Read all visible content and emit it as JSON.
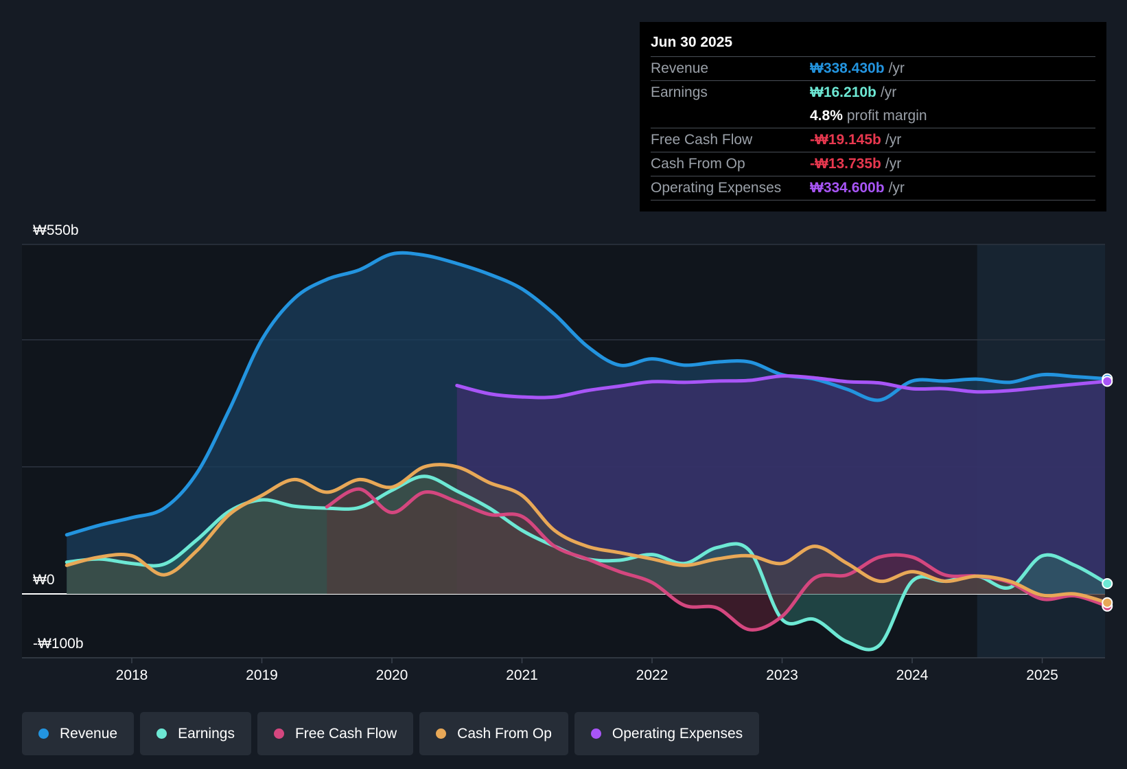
{
  "tooltip": {
    "date": "Jun 30 2025",
    "rows": [
      {
        "label": "Revenue",
        "value": "₩338.430b",
        "unit": "/yr",
        "color": "#2394df"
      },
      {
        "label": "Earnings",
        "value": "₩16.210b",
        "unit": "/yr",
        "color": "#6de8d4"
      },
      {
        "label": "",
        "value": "4.8%",
        "unit": "profit margin",
        "color": "#ffffff"
      },
      {
        "label": "Free Cash Flow",
        "value": "-₩19.145b",
        "unit": "/yr",
        "color": "#e8384f"
      },
      {
        "label": "Cash From Op",
        "value": "-₩13.735b",
        "unit": "/yr",
        "color": "#e8384f"
      },
      {
        "label": "Operating Expenses",
        "value": "₩334.600b",
        "unit": "/yr",
        "color": "#a855f7"
      }
    ]
  },
  "legend": [
    {
      "label": "Revenue",
      "color": "#2394df"
    },
    {
      "label": "Earnings",
      "color": "#6de8d4"
    },
    {
      "label": "Free Cash Flow",
      "color": "#d4477f"
    },
    {
      "label": "Cash From Op",
      "color": "#e8a857"
    },
    {
      "label": "Operating Expenses",
      "color": "#a855f7"
    }
  ],
  "chart_data": {
    "type": "area",
    "title": "",
    "xlabel": "",
    "ylabel": "",
    "x_range": [
      2017.17,
      2025.5
    ],
    "ylim": [
      -100,
      550
    ],
    "y_tick_labels": [
      {
        "value": 550,
        "label": "₩550b"
      },
      {
        "value": 0,
        "label": "₩0"
      },
      {
        "value": -100,
        "label": "-₩100b"
      }
    ],
    "gridlines": [
      550,
      400,
      200
    ],
    "x_ticks": [
      {
        "value": 2018,
        "label": "2018"
      },
      {
        "value": 2019,
        "label": "2019"
      },
      {
        "value": 2020,
        "label": "2020"
      },
      {
        "value": 2021,
        "label": "2021"
      },
      {
        "value": 2022,
        "label": "2022"
      },
      {
        "value": 2023,
        "label": "2023"
      },
      {
        "value": 2024,
        "label": "2024"
      },
      {
        "value": 2025,
        "label": "2025"
      }
    ],
    "forecast_start": 2024.5,
    "series": [
      {
        "name": "Revenue",
        "color": "#2394df",
        "fill": "#1a3d5c",
        "x": [
          2017.5,
          2017.75,
          2018.0,
          2018.25,
          2018.5,
          2018.75,
          2019.0,
          2019.25,
          2019.5,
          2019.75,
          2020.0,
          2020.25,
          2020.5,
          2020.75,
          2021.0,
          2021.25,
          2021.5,
          2021.75,
          2022.0,
          2022.25,
          2022.5,
          2022.75,
          2023.0,
          2023.25,
          2023.5,
          2023.75,
          2024.0,
          2024.25,
          2024.5,
          2024.75,
          2025.0,
          2025.25,
          2025.5
        ],
        "values": [
          93,
          108,
          120,
          135,
          190,
          290,
          400,
          465,
          495,
          510,
          535,
          533,
          520,
          503,
          480,
          440,
          390,
          360,
          370,
          360,
          365,
          365,
          345,
          338,
          322,
          305,
          335,
          335,
          338,
          333,
          345,
          342,
          338.43
        ]
      },
      {
        "name": "Operating Expenses",
        "color": "#a855f7",
        "fill": "#3b2f6a",
        "x": [
          2020.5,
          2020.75,
          2021.0,
          2021.25,
          2021.5,
          2021.75,
          2022.0,
          2022.25,
          2022.5,
          2022.75,
          2023.0,
          2023.25,
          2023.5,
          2023.75,
          2024.0,
          2024.25,
          2024.5,
          2024.75,
          2025.0,
          2025.25,
          2025.5
        ],
        "values": [
          328,
          315,
          310,
          310,
          320,
          327,
          334,
          333,
          335,
          336,
          343,
          340,
          334,
          332,
          323,
          323,
          318,
          320,
          325,
          330,
          334.6
        ]
      },
      {
        "name": "Earnings",
        "color": "#6de8d4",
        "fill": "#2c6a64",
        "x": [
          2017.5,
          2017.75,
          2018.0,
          2018.25,
          2018.5,
          2018.75,
          2019.0,
          2019.25,
          2019.5,
          2019.75,
          2020.0,
          2020.25,
          2020.5,
          2020.75,
          2021.0,
          2021.25,
          2021.5,
          2021.75,
          2022.0,
          2022.25,
          2022.5,
          2022.75,
          2023.0,
          2023.25,
          2023.5,
          2023.75,
          2024.0,
          2024.25,
          2024.5,
          2024.75,
          2025.0,
          2025.25,
          2025.5
        ],
        "values": [
          50,
          55,
          48,
          47,
          85,
          130,
          148,
          138,
          135,
          136,
          163,
          185,
          162,
          135,
          100,
          75,
          55,
          53,
          62,
          48,
          73,
          68,
          -40,
          -40,
          -75,
          -80,
          20,
          20,
          28,
          10,
          60,
          45,
          16.21
        ]
      },
      {
        "name": "Free Cash Flow",
        "color": "#d4477f",
        "fill": "#5c2034",
        "x": [
          2019.5,
          2019.75,
          2020.0,
          2020.25,
          2020.5,
          2020.75,
          2021.0,
          2021.25,
          2021.5,
          2021.75,
          2022.0,
          2022.25,
          2022.5,
          2022.75,
          2023.0,
          2023.25,
          2023.5,
          2023.75,
          2024.0,
          2024.25,
          2024.5,
          2024.75,
          2025.0,
          2025.25,
          2025.5
        ],
        "values": [
          137,
          165,
          128,
          160,
          145,
          125,
          122,
          75,
          55,
          35,
          18,
          -18,
          -22,
          -56,
          -35,
          25,
          30,
          58,
          58,
          30,
          28,
          18,
          -8,
          -3,
          -19.145
        ]
      },
      {
        "name": "Cash From Op",
        "color": "#e8a857",
        "fill": "#4d4a3a",
        "x": [
          2017.5,
          2017.75,
          2018.0,
          2018.25,
          2018.5,
          2018.75,
          2019.0,
          2019.25,
          2019.5,
          2019.75,
          2020.0,
          2020.25,
          2020.5,
          2020.75,
          2021.0,
          2021.25,
          2021.5,
          2021.75,
          2022.0,
          2022.25,
          2022.5,
          2022.75,
          2023.0,
          2023.25,
          2023.5,
          2023.75,
          2024.0,
          2024.25,
          2024.5,
          2024.75,
          2025.0,
          2025.25,
          2025.5
        ],
        "values": [
          45,
          58,
          60,
          30,
          68,
          125,
          155,
          180,
          160,
          180,
          168,
          200,
          200,
          175,
          155,
          100,
          75,
          65,
          55,
          45,
          55,
          60,
          48,
          75,
          48,
          20,
          35,
          20,
          28,
          20,
          -2,
          0,
          -13.735
        ]
      }
    ]
  }
}
